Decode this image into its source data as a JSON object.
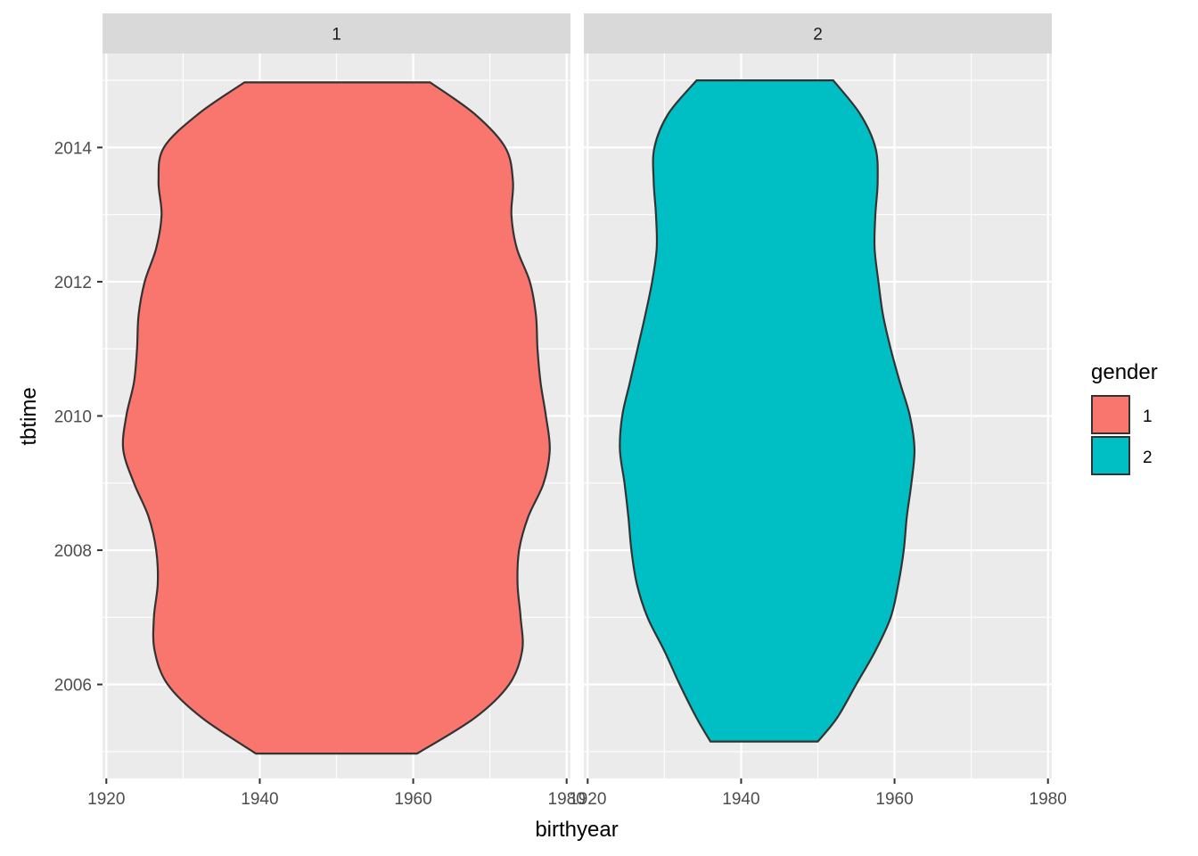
{
  "chart_data": {
    "type": "violin",
    "xlabel": "birthyear",
    "ylabel": "tbtime",
    "xlim": [
      1919.5,
      1980.5
    ],
    "ylim": [
      2004.6,
      2015.4
    ],
    "x_ticks": [
      1920,
      1940,
      1960,
      1980
    ],
    "y_ticks": [
      2006,
      2008,
      2010,
      2012,
      2014
    ],
    "grid": true,
    "legend": {
      "title": "gender",
      "position": "right",
      "entries": [
        {
          "label": "1",
          "color": "#F8766D"
        },
        {
          "label": "2",
          "color": "#00BFC4"
        }
      ]
    },
    "panels": [
      {
        "strip": "1",
        "fill": "#F8766D",
        "y_top": 2014.97,
        "y_bottom": 2004.97,
        "outline": [
          {
            "y": 2014.97,
            "left": 1938.0,
            "right": 1962.2
          },
          {
            "y": 2014.5,
            "left": 1932.0,
            "right": 1968.0
          },
          {
            "y": 2014.0,
            "left": 1927.5,
            "right": 1972.0
          },
          {
            "y": 2013.5,
            "left": 1926.8,
            "right": 1973.0
          },
          {
            "y": 2013.0,
            "left": 1927.2,
            "right": 1972.8
          },
          {
            "y": 2012.5,
            "left": 1926.5,
            "right": 1973.5
          },
          {
            "y": 2012.0,
            "left": 1925.0,
            "right": 1975.2
          },
          {
            "y": 2011.5,
            "left": 1924.2,
            "right": 1976.0
          },
          {
            "y": 2011.0,
            "left": 1924.0,
            "right": 1976.2
          },
          {
            "y": 2010.5,
            "left": 1923.6,
            "right": 1976.6
          },
          {
            "y": 2010.0,
            "left": 1922.6,
            "right": 1977.3
          },
          {
            "y": 2009.5,
            "left": 1922.2,
            "right": 1977.8
          },
          {
            "y": 2009.0,
            "left": 1923.6,
            "right": 1977.0
          },
          {
            "y": 2008.5,
            "left": 1925.5,
            "right": 1975.0
          },
          {
            "y": 2008.0,
            "left": 1926.5,
            "right": 1973.8
          },
          {
            "y": 2007.5,
            "left": 1926.7,
            "right": 1973.6
          },
          {
            "y": 2007.0,
            "left": 1926.2,
            "right": 1974.0
          },
          {
            "y": 2006.5,
            "left": 1926.3,
            "right": 1974.2
          },
          {
            "y": 2006.0,
            "left": 1928.0,
            "right": 1972.5
          },
          {
            "y": 2005.5,
            "left": 1932.5,
            "right": 1968.0
          },
          {
            "y": 2004.97,
            "left": 1939.5,
            "right": 1960.5
          }
        ]
      },
      {
        "strip": "2",
        "fill": "#00BFC4",
        "y_top": 2015.0,
        "y_bottom": 2005.15,
        "outline": [
          {
            "y": 2015.0,
            "left": 1934.2,
            "right": 1952.0
          },
          {
            "y": 2014.5,
            "left": 1930.5,
            "right": 1955.5
          },
          {
            "y": 2014.0,
            "left": 1928.7,
            "right": 1957.5
          },
          {
            "y": 2013.5,
            "left": 1928.6,
            "right": 1957.8
          },
          {
            "y": 2013.0,
            "left": 1928.9,
            "right": 1957.5
          },
          {
            "y": 2012.5,
            "left": 1929.0,
            "right": 1957.4
          },
          {
            "y": 2012.0,
            "left": 1928.4,
            "right": 1957.9
          },
          {
            "y": 2011.5,
            "left": 1927.5,
            "right": 1958.5
          },
          {
            "y": 2011.0,
            "left": 1926.5,
            "right": 1959.5
          },
          {
            "y": 2010.5,
            "left": 1925.5,
            "right": 1960.7
          },
          {
            "y": 2010.0,
            "left": 1924.5,
            "right": 1962.0
          },
          {
            "y": 2009.5,
            "left": 1924.2,
            "right": 1962.6
          },
          {
            "y": 2009.0,
            "left": 1924.8,
            "right": 1962.2
          },
          {
            "y": 2008.5,
            "left": 1925.3,
            "right": 1961.6
          },
          {
            "y": 2008.0,
            "left": 1925.7,
            "right": 1961.2
          },
          {
            "y": 2007.5,
            "left": 1926.4,
            "right": 1960.5
          },
          {
            "y": 2007.0,
            "left": 1927.8,
            "right": 1959.5
          },
          {
            "y": 2006.5,
            "left": 1930.0,
            "right": 1957.5
          },
          {
            "y": 2006.0,
            "left": 1932.0,
            "right": 1955.0
          },
          {
            "y": 2005.5,
            "left": 1934.2,
            "right": 1952.5
          },
          {
            "y": 2005.15,
            "left": 1936.0,
            "right": 1950.0
          }
        ]
      }
    ]
  }
}
